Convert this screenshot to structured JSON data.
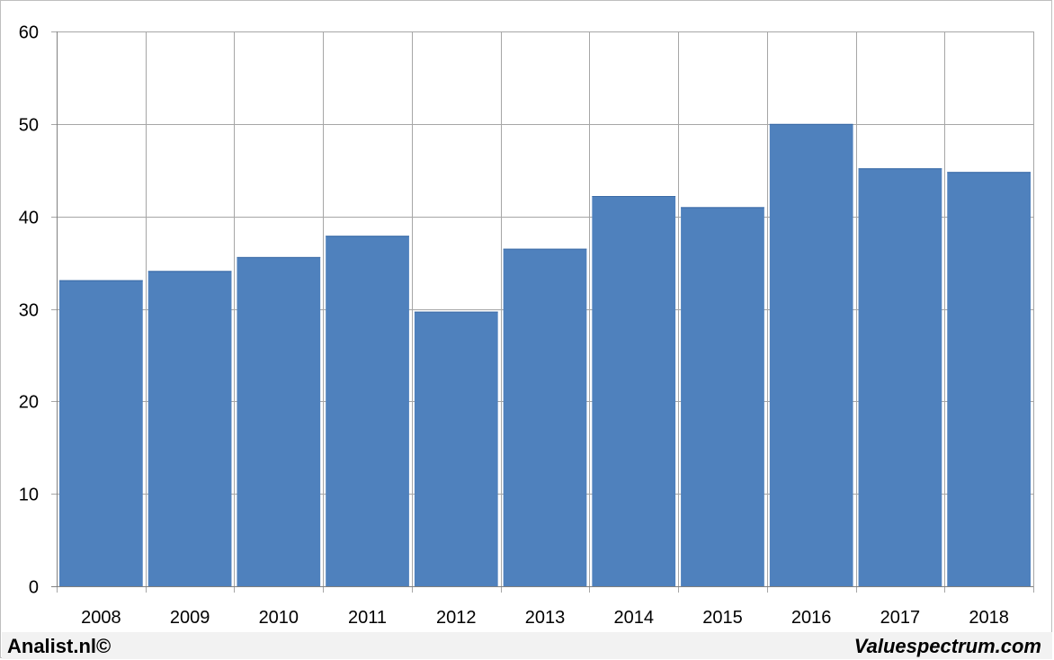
{
  "chart_data": {
    "type": "bar",
    "categories": [
      "2008",
      "2009",
      "2010",
      "2011",
      "2012",
      "2013",
      "2014",
      "2015",
      "2016",
      "2017",
      "2018"
    ],
    "values": [
      33.1,
      34.1,
      35.6,
      37.9,
      29.7,
      36.5,
      42.2,
      41.0,
      50.0,
      45.2,
      44.8
    ],
    "title": "",
    "xlabel": "",
    "ylabel": "",
    "ylim": [
      0,
      60
    ],
    "yticks": [
      0,
      10,
      20,
      30,
      40,
      50,
      60
    ],
    "grid": true,
    "legend": "none",
    "bar_color": "#4f81bd",
    "grid_color": "#a6a6a6"
  },
  "footer": {
    "left_text": "Analist.nl©",
    "right_text": "Valuespectrum.com"
  }
}
